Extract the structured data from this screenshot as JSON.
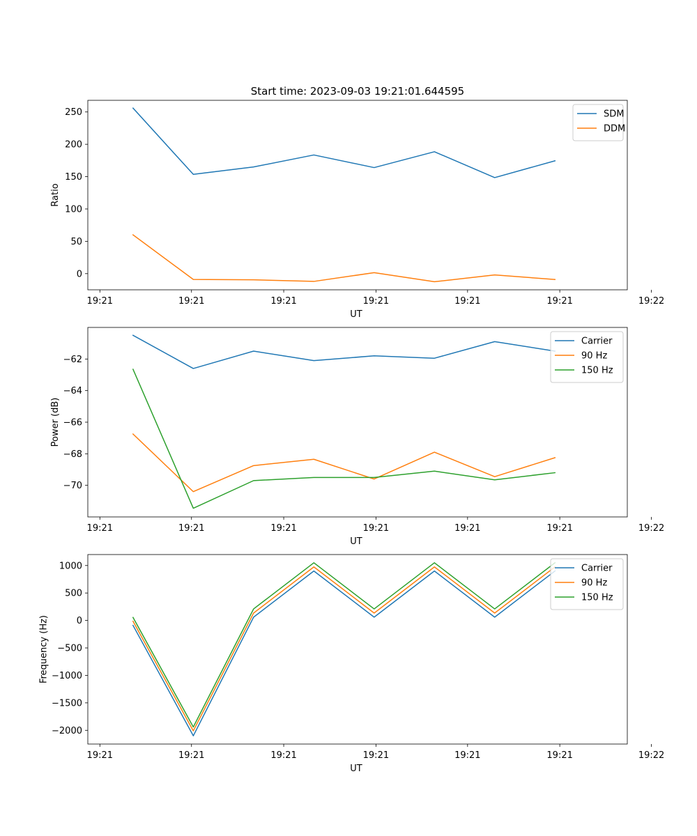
{
  "figure": {
    "title": "Start time: 2023-09-03 19:21:01.644595"
  },
  "chart_data": [
    {
      "type": "line",
      "xlabel": "UT",
      "ylabel": "Ratio",
      "x": [
        0,
        1,
        2,
        3,
        4,
        5,
        6,
        7
      ],
      "xlim": [
        -0.75,
        8.2
      ],
      "xticks": [
        {
          "v": -0.55,
          "label": "19:21"
        },
        {
          "v": 0.97,
          "label": "19:21"
        },
        {
          "v": 2.5,
          "label": "19:21"
        },
        {
          "v": 4.03,
          "label": "19:21"
        },
        {
          "v": 5.55,
          "label": "19:21"
        },
        {
          "v": 7.08,
          "label": "19:21"
        },
        {
          "v": 8.6,
          "label": "19:22"
        }
      ],
      "ylim": [
        -25,
        268
      ],
      "yticks": [
        0,
        50,
        100,
        150,
        200,
        250
      ],
      "legend_position": "top-right",
      "series": [
        {
          "name": "SDM",
          "color": "#1f77b4",
          "values": [
            256,
            153.5,
            165,
            183.5,
            164,
            188.5,
            148.5,
            174.5
          ]
        },
        {
          "name": "DDM",
          "color": "#ff7f0e",
          "values": [
            60,
            -9,
            -9.5,
            -12,
            1.5,
            -12.5,
            -2,
            -9
          ]
        }
      ]
    },
    {
      "type": "line",
      "xlabel": "UT",
      "ylabel": "Power (dB)",
      "x": [
        0,
        1,
        2,
        3,
        4,
        5,
        6,
        7
      ],
      "xlim": [
        -0.75,
        8.2
      ],
      "xticks": [
        {
          "v": -0.55,
          "label": "19:21"
        },
        {
          "v": 0.97,
          "label": "19:21"
        },
        {
          "v": 2.5,
          "label": "19:21"
        },
        {
          "v": 4.03,
          "label": "19:21"
        },
        {
          "v": 5.55,
          "label": "19:21"
        },
        {
          "v": 7.08,
          "label": "19:21"
        },
        {
          "v": 8.6,
          "label": "19:22"
        }
      ],
      "ylim": [
        -72,
        -60
      ],
      "yticks": [
        -70,
        -68,
        -66,
        -64,
        -62
      ],
      "legend_position": "top-right",
      "series": [
        {
          "name": "Carrier",
          "color": "#1f77b4",
          "values": [
            -60.5,
            -62.6,
            -61.5,
            -62.1,
            -61.8,
            -61.95,
            -60.9,
            -61.5
          ]
        },
        {
          "name": "90 Hz",
          "color": "#ff7f0e",
          "values": [
            -66.75,
            -70.4,
            -68.75,
            -68.35,
            -69.6,
            -67.9,
            -69.45,
            -68.25
          ]
        },
        {
          "name": "150 Hz",
          "color": "#2ca02c",
          "values": [
            -62.65,
            -71.45,
            -69.7,
            -69.5,
            -69.5,
            -69.1,
            -69.65,
            -69.2
          ]
        }
      ]
    },
    {
      "type": "line",
      "xlabel": "UT",
      "ylabel": "Frequency (Hz)",
      "x": [
        0,
        1,
        2,
        3,
        4,
        5,
        6,
        7
      ],
      "xlim": [
        -0.75,
        8.2
      ],
      "xticks": [
        {
          "v": -0.55,
          "label": "19:21"
        },
        {
          "v": 0.97,
          "label": "19:21"
        },
        {
          "v": 2.5,
          "label": "19:21"
        },
        {
          "v": 4.03,
          "label": "19:21"
        },
        {
          "v": 5.55,
          "label": "19:21"
        },
        {
          "v": 7.08,
          "label": "19:21"
        },
        {
          "v": 8.6,
          "label": "19:22"
        }
      ],
      "ylim": [
        -2250,
        1200
      ],
      "yticks": [
        -2000,
        -1500,
        -1000,
        -500,
        0,
        500,
        1000
      ],
      "legend_position": "top-right",
      "series": [
        {
          "name": "Carrier",
          "color": "#1f77b4",
          "values": [
            -90,
            -2100,
            60,
            900,
            60,
            900,
            60,
            900
          ]
        },
        {
          "name": "90 Hz",
          "color": "#ff7f0e",
          "values": [
            -15,
            -2010,
            135,
            975,
            135,
            975,
            135,
            975
          ]
        },
        {
          "name": "150 Hz",
          "color": "#2ca02c",
          "values": [
            55,
            -1940,
            210,
            1050,
            210,
            1050,
            210,
            1050
          ]
        }
      ]
    }
  ]
}
